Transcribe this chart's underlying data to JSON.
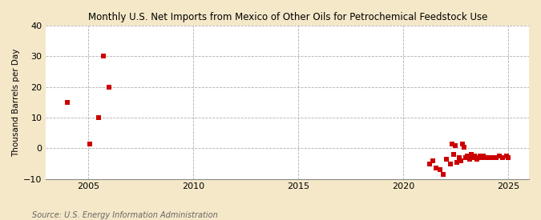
{
  "title": "Monthly U.S. Net Imports from Mexico of Other Oils for Petrochemical Feedstock Use",
  "ylabel": "Thousand Barrels per Day",
  "source": "Source: U.S. Energy Information Administration",
  "background_color": "#f5e8c8",
  "plot_background_color": "#ffffff",
  "marker_color": "#cc0000",
  "ylim": [
    -10,
    40
  ],
  "xlim": [
    2003.0,
    2026.0
  ],
  "yticks": [
    -10,
    0,
    10,
    20,
    30,
    40
  ],
  "xticks": [
    2005,
    2010,
    2015,
    2020,
    2025
  ],
  "data_points": [
    [
      2004.0,
      15.0
    ],
    [
      2005.1,
      1.5
    ],
    [
      2005.5,
      10.0
    ],
    [
      2006.0,
      20.0
    ],
    [
      2005.75,
      30.0
    ],
    [
      2021.25,
      -5.0
    ],
    [
      2021.42,
      -4.0
    ],
    [
      2021.58,
      -6.5
    ],
    [
      2021.75,
      -7.0
    ],
    [
      2021.92,
      -8.5
    ],
    [
      2022.08,
      -3.5
    ],
    [
      2022.25,
      -5.0
    ],
    [
      2022.33,
      1.5
    ],
    [
      2022.42,
      -2.0
    ],
    [
      2022.5,
      1.0
    ],
    [
      2022.58,
      -4.5
    ],
    [
      2022.67,
      -3.0
    ],
    [
      2022.75,
      -4.0
    ],
    [
      2022.83,
      1.5
    ],
    [
      2022.92,
      0.5
    ],
    [
      2023.0,
      -3.0
    ],
    [
      2023.08,
      -2.5
    ],
    [
      2023.17,
      -3.5
    ],
    [
      2023.25,
      -2.0
    ],
    [
      2023.33,
      -3.0
    ],
    [
      2023.42,
      -2.5
    ],
    [
      2023.5,
      -3.5
    ],
    [
      2023.58,
      -3.0
    ],
    [
      2023.67,
      -2.5
    ],
    [
      2023.75,
      -3.0
    ],
    [
      2023.83,
      -2.5
    ],
    [
      2023.92,
      -3.0
    ],
    [
      2024.08,
      -3.0
    ],
    [
      2024.25,
      -3.0
    ],
    [
      2024.42,
      -3.0
    ],
    [
      2024.58,
      -2.5
    ],
    [
      2024.75,
      -3.0
    ],
    [
      2024.92,
      -2.5
    ],
    [
      2025.0,
      -3.0
    ]
  ]
}
